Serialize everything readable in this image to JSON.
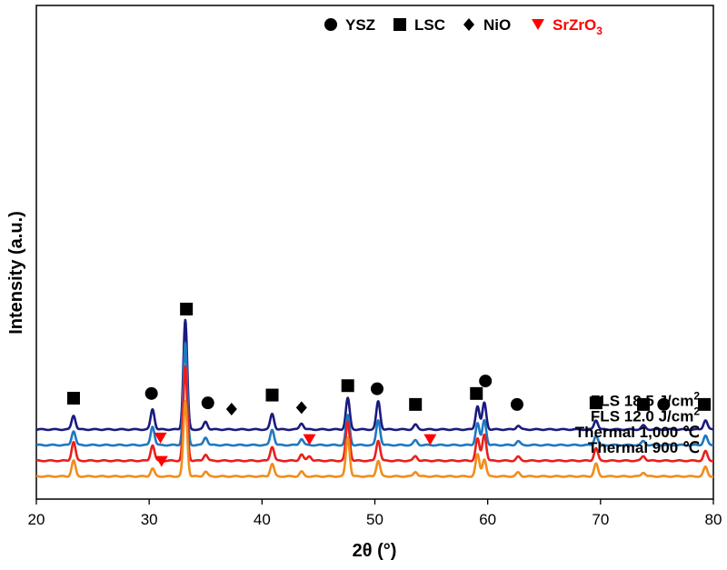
{
  "chart_data": {
    "type": "line",
    "title": "",
    "xlabel": "2θ (°)",
    "ylabel": "Intensity (a.u.)",
    "xlim": [
      20,
      80
    ],
    "xticks": [
      20,
      30,
      40,
      50,
      60,
      70,
      80
    ],
    "y_ticks_shown": false,
    "legend": {
      "position": "top-right",
      "entries": [
        {
          "marker": "circle",
          "label": "YSZ",
          "color": "#000000"
        },
        {
          "marker": "square",
          "label": "LSC",
          "color": "#000000"
        },
        {
          "marker": "diamond",
          "label": "NiO",
          "color": "#000000"
        },
        {
          "marker": "triangle-down",
          "label": "SrZrO",
          "subscript": "3",
          "color": "#ff0000"
        }
      ]
    },
    "series": [
      {
        "name": "FLS 18.5 J/cm²",
        "label_main": "FLS 18.5 J/cm",
        "label_sup": "2",
        "color": "#1a1a80",
        "offset": 3,
        "peaks": [
          [
            23.3,
            0.9
          ],
          [
            30.3,
            1.3
          ],
          [
            33.2,
            7.0
          ],
          [
            35.0,
            0.5
          ],
          [
            40.9,
            1.0
          ],
          [
            43.5,
            0.4
          ],
          [
            47.6,
            2.0
          ],
          [
            50.3,
            1.8
          ],
          [
            53.6,
            0.3
          ],
          [
            59.1,
            1.5
          ],
          [
            59.7,
            1.7
          ],
          [
            62.7,
            0.25
          ],
          [
            69.6,
            0.6
          ],
          [
            73.8,
            0.25
          ],
          [
            79.3,
            0.6
          ]
        ]
      },
      {
        "name": "FLS 12.0 J/cm²",
        "label_main": "FLS 12.0 J/cm",
        "label_sup": "2",
        "color": "#1f78c0",
        "offset": 2,
        "peaks": [
          [
            23.3,
            0.9
          ],
          [
            30.3,
            1.2
          ],
          [
            33.2,
            6.5
          ],
          [
            35.0,
            0.5
          ],
          [
            40.9,
            1.0
          ],
          [
            43.5,
            0.4
          ],
          [
            47.6,
            1.9
          ],
          [
            50.3,
            1.6
          ],
          [
            53.6,
            0.3
          ],
          [
            59.1,
            1.4
          ],
          [
            59.7,
            1.6
          ],
          [
            62.7,
            0.25
          ],
          [
            69.6,
            0.6
          ],
          [
            73.8,
            0.25
          ],
          [
            79.3,
            0.6
          ]
        ]
      },
      {
        "name": "Thermal 1,000 ℃",
        "label_main": "Thermal 1,000 ℃",
        "label_sup": "",
        "color": "#e8201c",
        "offset": 1,
        "peaks": [
          [
            23.3,
            1.2
          ],
          [
            30.3,
            1.0
          ],
          [
            33.2,
            6.0
          ],
          [
            35.0,
            0.4
          ],
          [
            40.9,
            0.9
          ],
          [
            43.5,
            0.4
          ],
          [
            44.2,
            0.3
          ],
          [
            47.6,
            2.5
          ],
          [
            50.3,
            1.3
          ],
          [
            53.6,
            0.3
          ],
          [
            59.1,
            1.4
          ],
          [
            59.7,
            1.7
          ],
          [
            62.7,
            0.25
          ],
          [
            69.6,
            0.8
          ],
          [
            73.8,
            0.3
          ],
          [
            79.3,
            0.6
          ]
        ]
      },
      {
        "name": "Thermal 900 ℃",
        "label_main": "Thermal 900 ℃",
        "label_sup": "",
        "color": "#f28c1c",
        "offset": 0,
        "peaks": [
          [
            23.3,
            1.0
          ],
          [
            30.3,
            0.5
          ],
          [
            33.2,
            4.8
          ],
          [
            35.0,
            0.3
          ],
          [
            40.9,
            0.8
          ],
          [
            43.5,
            0.3
          ],
          [
            47.6,
            2.5
          ],
          [
            50.3,
            1.0
          ],
          [
            53.6,
            0.3
          ],
          [
            59.1,
            1.4
          ],
          [
            59.7,
            1.1
          ],
          [
            62.7,
            0.25
          ],
          [
            69.6,
            0.8
          ],
          [
            73.8,
            0.25
          ],
          [
            79.3,
            0.6
          ]
        ]
      }
    ],
    "markers": [
      {
        "type": "square",
        "x": 23.3,
        "y": 5.0,
        "color": "#000000"
      },
      {
        "type": "circle",
        "x": 30.2,
        "y": 5.3,
        "color": "#000000"
      },
      {
        "type": "square",
        "x": 33.3,
        "y": 10.7,
        "color": "#000000"
      },
      {
        "type": "circle",
        "x": 35.2,
        "y": 4.7,
        "color": "#000000"
      },
      {
        "type": "diamond",
        "x": 37.3,
        "y": 4.3,
        "color": "#000000"
      },
      {
        "type": "square",
        "x": 40.9,
        "y": 5.2,
        "color": "#000000"
      },
      {
        "type": "diamond",
        "x": 43.5,
        "y": 4.4,
        "color": "#000000"
      },
      {
        "type": "square",
        "x": 47.6,
        "y": 5.8,
        "color": "#000000"
      },
      {
        "type": "circle",
        "x": 50.2,
        "y": 5.6,
        "color": "#000000"
      },
      {
        "type": "square",
        "x": 53.6,
        "y": 4.6,
        "color": "#000000"
      },
      {
        "type": "square",
        "x": 59.0,
        "y": 5.3,
        "color": "#000000"
      },
      {
        "type": "circle",
        "x": 59.8,
        "y": 6.1,
        "color": "#000000"
      },
      {
        "type": "circle",
        "x": 62.6,
        "y": 4.6,
        "color": "#000000"
      },
      {
        "type": "square",
        "x": 69.6,
        "y": 4.7,
        "color": "#000000"
      },
      {
        "type": "square",
        "x": 73.8,
        "y": 4.6,
        "color": "#000000"
      },
      {
        "type": "circle",
        "x": 75.6,
        "y": 4.6,
        "color": "#000000"
      },
      {
        "type": "square",
        "x": 79.2,
        "y": 4.6,
        "color": "#000000"
      },
      {
        "type": "triangle-down",
        "x": 31.0,
        "y": 2.45,
        "color": "#ff0000"
      },
      {
        "type": "triangle-down",
        "x": 44.2,
        "y": 2.35,
        "color": "#ff0000"
      },
      {
        "type": "triangle-down",
        "x": 54.9,
        "y": 2.35,
        "color": "#ff0000"
      },
      {
        "type": "triangle-down",
        "x": 31.1,
        "y": 0.95,
        "color": "#ff0000"
      }
    ]
  }
}
